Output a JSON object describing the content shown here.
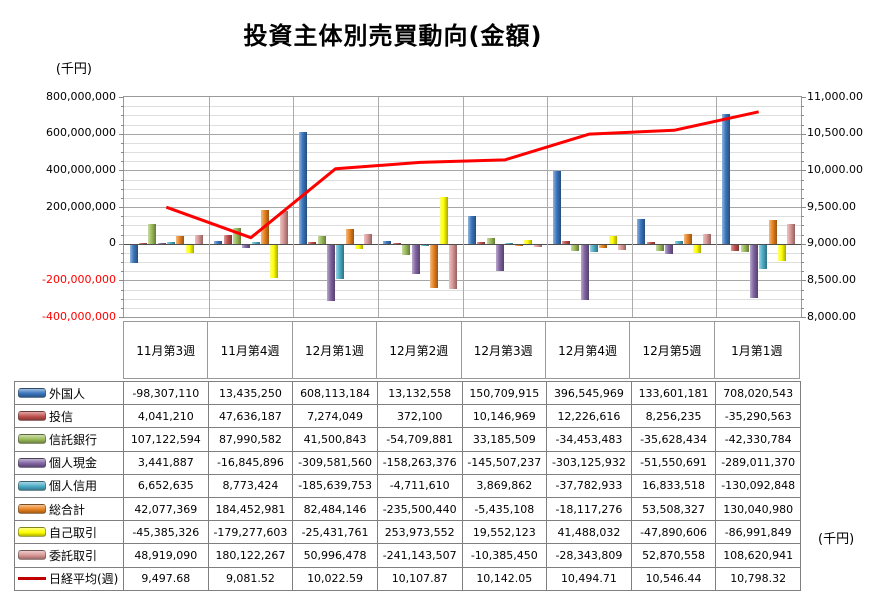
{
  "title": "投資主体別売買動向(金額)",
  "axis_left_unit": "(千円)",
  "axis_right_unit": "(千円)",
  "chart_data": {
    "type": "bar",
    "subtype": "bar-line-combo",
    "grid": true,
    "legend_position": "left-of-table",
    "categories": [
      "11月第3週",
      "11月第4週",
      "12月第1週",
      "12月第2週",
      "12月第3週",
      "12月第4週",
      "12月第5週",
      "1月第1週"
    ],
    "bar_series": [
      {
        "name": "外国人",
        "color": "#3A76BE",
        "values": [
          -98307110,
          13435250,
          608113184,
          13132558,
          150709915,
          396545969,
          133601181,
          708020543
        ]
      },
      {
        "name": "投信",
        "color": "#C0504D",
        "values": [
          4041210,
          47636187,
          7274049,
          372100,
          10146969,
          12226616,
          8256235,
          -35290563
        ]
      },
      {
        "name": "信託銀行",
        "color": "#9BBB59",
        "values": [
          107122594,
          87990582,
          41500843,
          -54709881,
          33185509,
          -34453483,
          -35628434,
          -42330784
        ]
      },
      {
        "name": "個人現金",
        "color": "#8064A2",
        "values": [
          3441887,
          -16845896,
          -309581560,
          -158263376,
          -145507237,
          -303125932,
          -51550691,
          -289011370
        ]
      },
      {
        "name": "個人信用",
        "color": "#4BACC6",
        "values": [
          6652635,
          8773424,
          -185639753,
          -4711610,
          3869862,
          -37782933,
          16833518,
          -130092848
        ]
      },
      {
        "name": "総合計",
        "color": "#E8821E",
        "values": [
          42077369,
          184452981,
          82484146,
          -235500440,
          -5435108,
          -18117276,
          53508327,
          130040980
        ]
      },
      {
        "name": "自己取引",
        "color": "#FFFF00",
        "values": [
          -45385326,
          -179277603,
          -25431761,
          253973552,
          19552123,
          41488032,
          -47890606,
          -86991849
        ]
      },
      {
        "name": "委託取引",
        "color": "#D99694",
        "values": [
          48919090,
          180122267,
          50996478,
          -241143507,
          -10385450,
          -28343809,
          52870558,
          108620941
        ]
      }
    ],
    "line_series": {
      "name": "日経平均(週)",
      "color": "#FF0000",
      "legend_color": "#C00000",
      "values": [
        9497.68,
        9081.52,
        10022.59,
        10107.87,
        10142.05,
        10494.71,
        10546.44,
        10798.32
      ]
    },
    "y_left": {
      "label": "(千円)",
      "min": -400000000,
      "max": 800000000,
      "major_step": 200000000,
      "minor_step": 50000000,
      "ticks": [
        "800,000,000",
        "600,000,000",
        "400,000,000",
        "200,000,000",
        "0",
        "-200,000,000",
        "-400,000,000"
      ]
    },
    "y_right": {
      "label": "(千円)",
      "min": 8000,
      "max": 11000,
      "major_step": 500,
      "ticks": [
        "11,000.00",
        "10,500.00",
        "10,000.00",
        "9,500.00",
        "9,000.00",
        "8,500.00",
        "8,000.00"
      ]
    }
  }
}
